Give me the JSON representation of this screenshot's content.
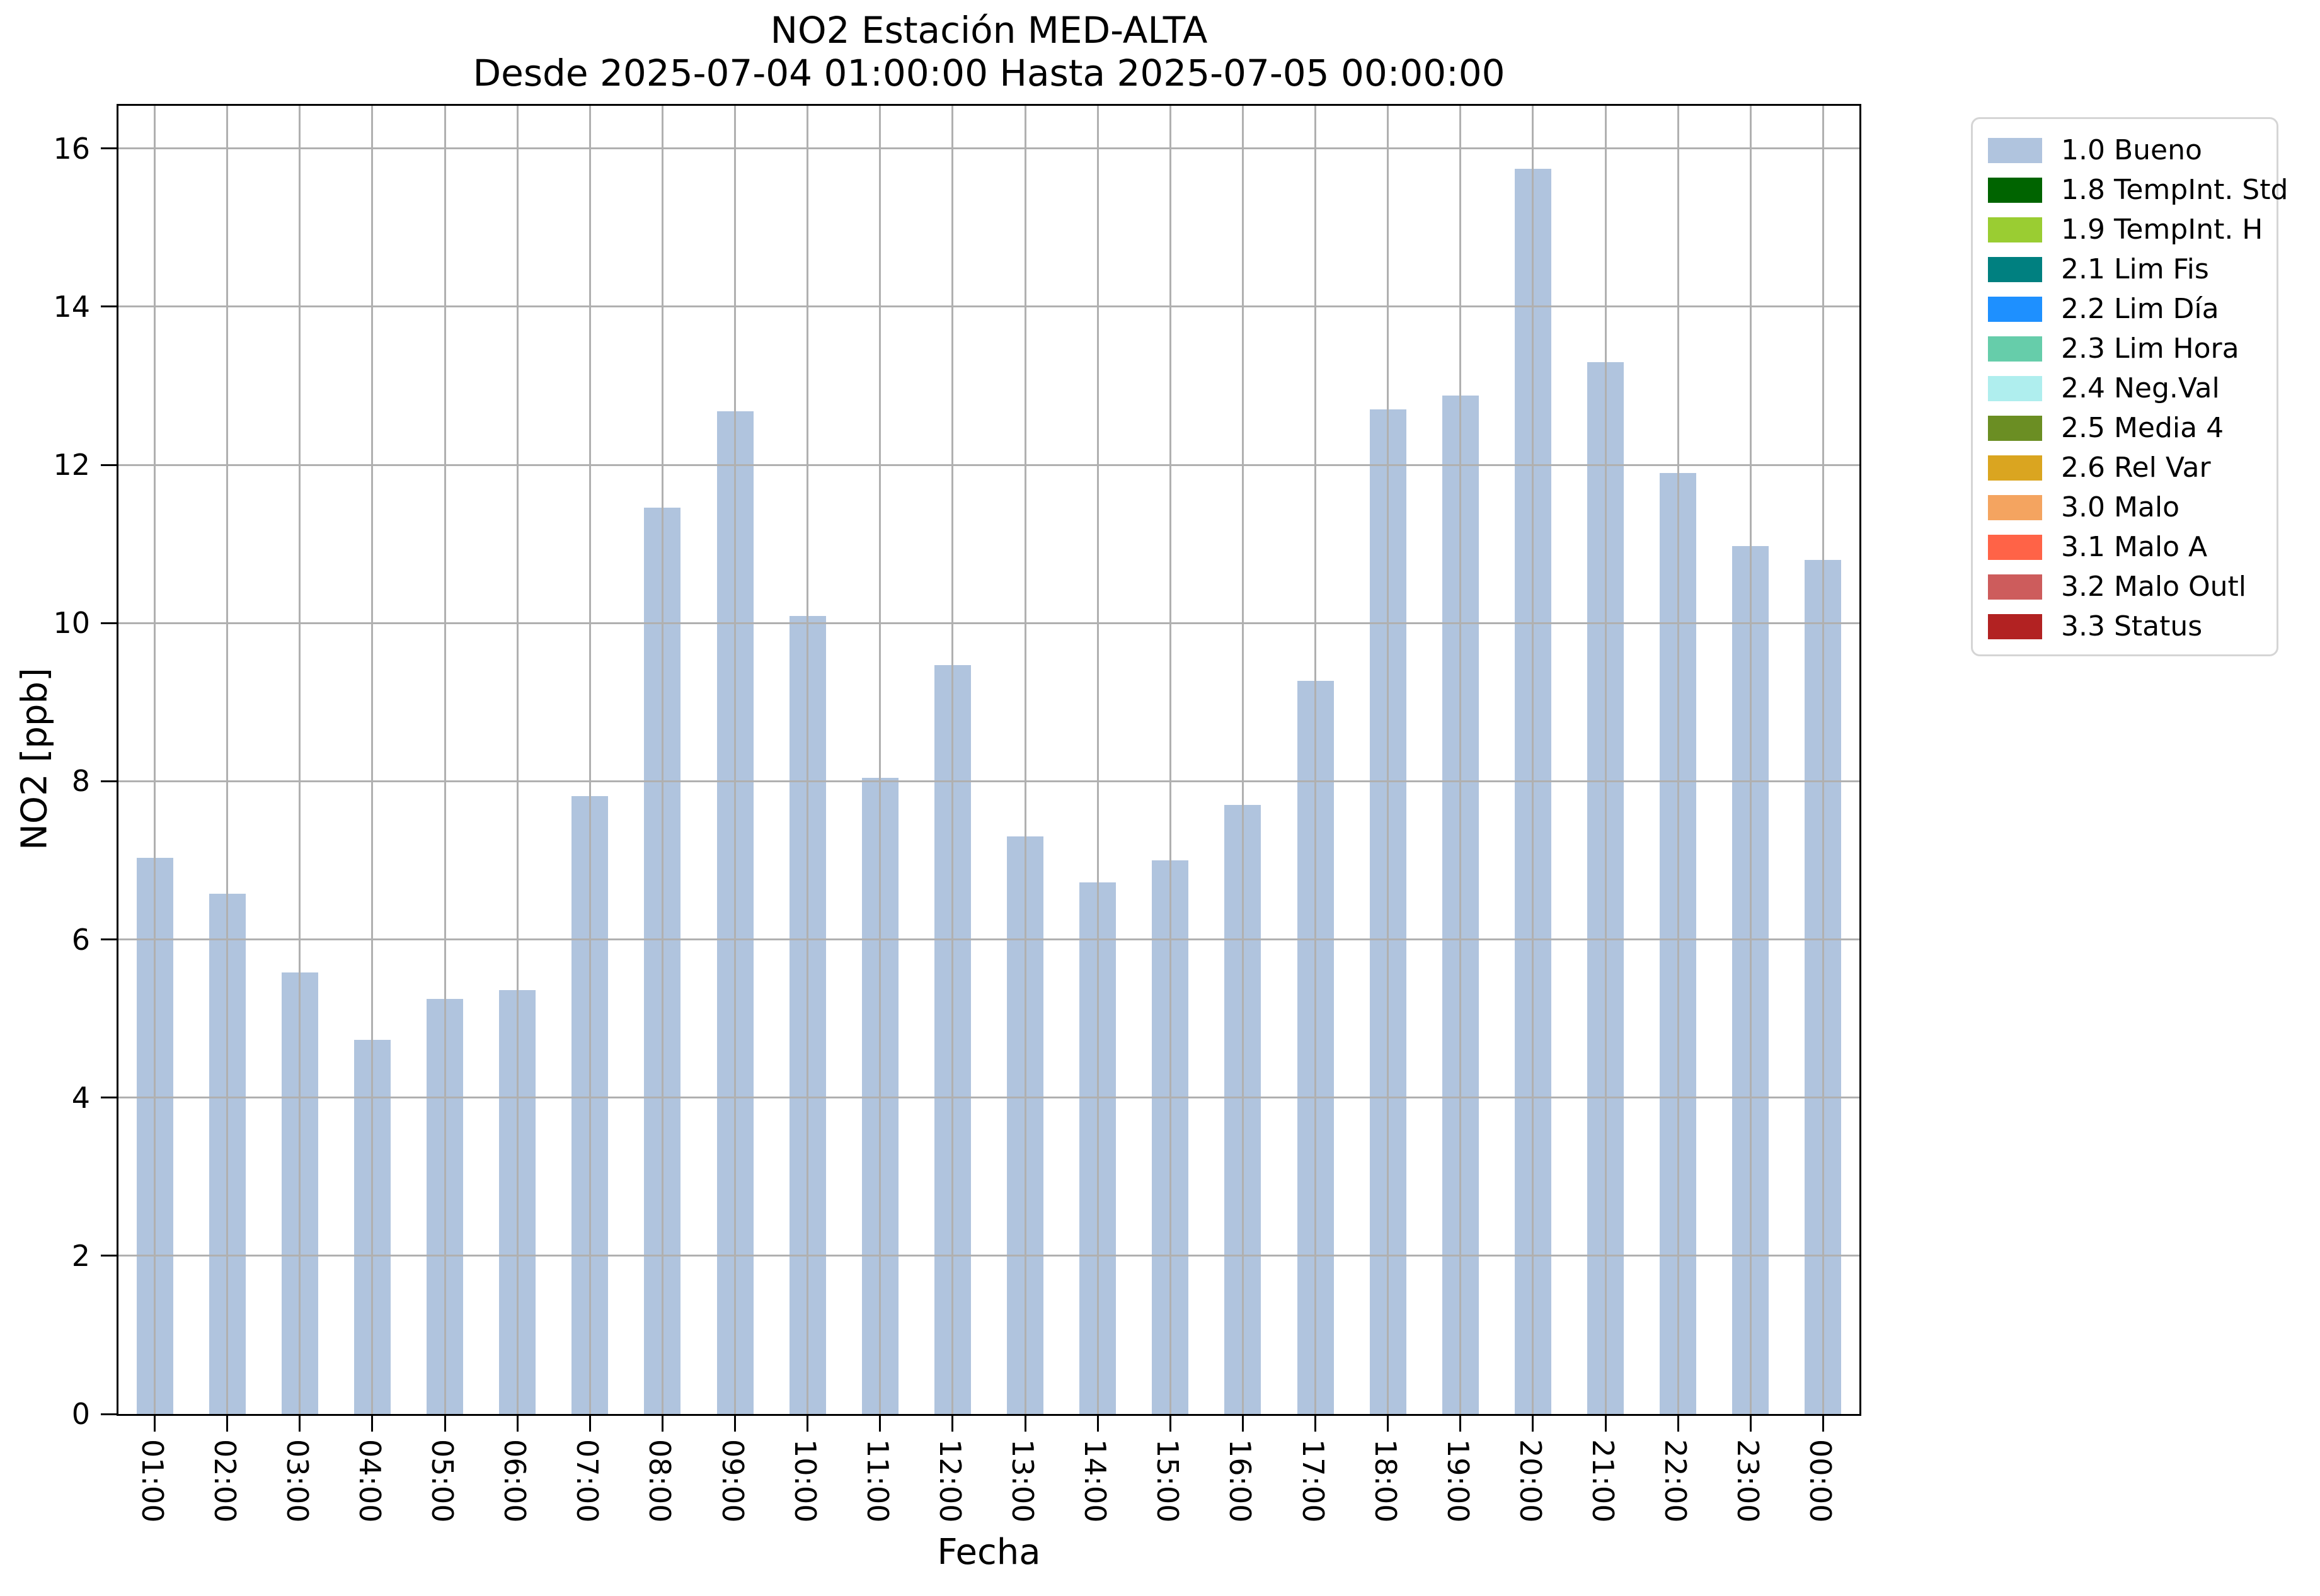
{
  "chart_data": {
    "type": "bar",
    "title": "NO2 Estación MED-ALTA",
    "subtitle": "Desde 2025-07-04 01:00:00 Hasta 2025-07-05 00:00:00",
    "xlabel": "Fecha",
    "ylabel": "NO2 [ppb]",
    "categories": [
      "01:00",
      "02:00",
      "03:00",
      "04:00",
      "05:00",
      "06:00",
      "07:00",
      "08:00",
      "09:00",
      "10:00",
      "11:00",
      "12:00",
      "13:00",
      "14:00",
      "15:00",
      "16:00",
      "17:00",
      "18:00",
      "19:00",
      "20:00",
      "21:00",
      "22:00",
      "23:00",
      "00:00"
    ],
    "values": [
      7.03,
      6.58,
      5.58,
      4.73,
      5.25,
      5.36,
      7.81,
      11.46,
      12.68,
      10.09,
      8.04,
      9.47,
      7.3,
      6.72,
      7.0,
      7.7,
      9.27,
      12.7,
      12.88,
      15.74,
      13.3,
      11.9,
      10.97,
      10.8
    ],
    "bar_color": "#b0c4de",
    "grid": true,
    "grid_color": "#b0b0b0",
    "ylim": [
      0,
      16.54
    ],
    "yticks": [
      0,
      2,
      4,
      6,
      8,
      10,
      12,
      14,
      16
    ],
    "legend_position": "outside-right-top",
    "legend": [
      {
        "label": "1.0 Bueno",
        "color": "#b0c4de"
      },
      {
        "label": "1.8 TempInt. Std",
        "color": "#006400"
      },
      {
        "label": "1.9 TempInt. H",
        "color": "#9acd32"
      },
      {
        "label": "2.1 Lim Fis",
        "color": "#008080"
      },
      {
        "label": "2.2 Lim Día",
        "color": "#1e90ff"
      },
      {
        "label": "2.3 Lim Hora",
        "color": "#66cdaa"
      },
      {
        "label": "2.4 Neg.Val",
        "color": "#afeeee"
      },
      {
        "label": "2.5 Media 4",
        "color": "#6b8e23"
      },
      {
        "label": "2.6 Rel Var",
        "color": "#daa520"
      },
      {
        "label": "3.0 Malo",
        "color": "#f4a460"
      },
      {
        "label": "3.1 Malo A",
        "color": "#ff6347"
      },
      {
        "label": "3.2 Malo Outl",
        "color": "#cd5c5c"
      },
      {
        "label": "3.3 Status",
        "color": "#b22222"
      }
    ]
  }
}
